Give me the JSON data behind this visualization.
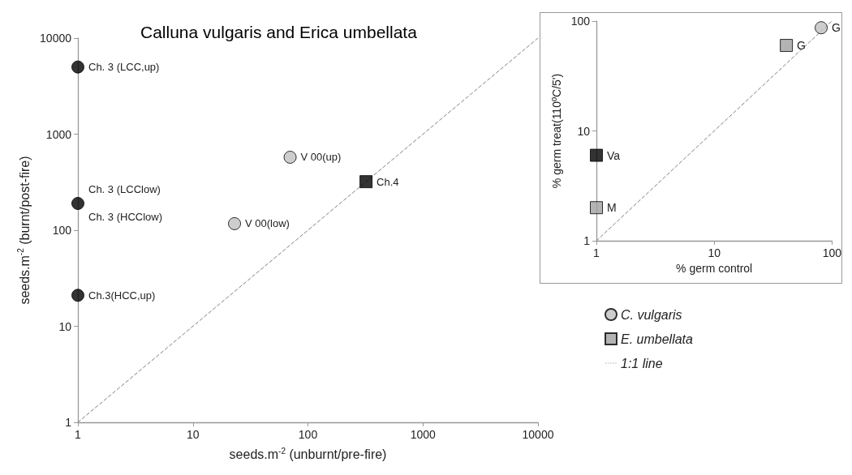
{
  "chart_data": [
    {
      "type": "scatter",
      "title": "Calluna vulgaris and Erica umbellata",
      "xlabel": "seeds.m$^{-2}$ (unburnt/pre-fire)",
      "ylabel": "seeds.m$^{-2}$ (burnt/post-fire)",
      "log": "xy",
      "xlim": [
        1,
        10000
      ],
      "ylim": [
        1,
        10000
      ],
      "xticks": [
        1,
        10,
        100,
        1000,
        10000
      ],
      "yticks": [
        1,
        10,
        100,
        1000,
        10000
      ],
      "grid": false,
      "series": [
        {
          "marker": "circle",
          "color": "#c0c0c0",
          "x": [
            1,
            1,
            1,
            70,
            23
          ],
          "values": [
            5000,
            190,
            21,
            575,
            117
          ],
          "colors": [
            "#000000",
            "#000000",
            "#000000",
            "#c0c0c0",
            "#c0c0c0"
          ]
        },
        {
          "marker": "square",
          "color": "#000000",
          "x": [
            320
          ],
          "values": [
            320
          ],
          "colors": [
            "#000000"
          ]
        },
        {
          "type": "line",
          "color": "#808080",
          "line_style": "dashed",
          "marker": "none",
          "x": [
            1,
            10000
          ],
          "values": [
            1,
            10000
          ]
        }
      ],
      "annotations": [
        {
          "text": "Ch. 3 (LCC,up)",
          "x": 1,
          "y": 5000
        },
        {
          "text": "Ch. 3 (LCClow)",
          "x": 1,
          "y": 190
        },
        {
          "text": "Ch. 3 (HCClow)",
          "x": 1,
          "y": 190
        },
        {
          "text": "Ch.3(HCC,up)",
          "x": 1,
          "y": 21
        },
        {
          "text": "V 00(up)",
          "x": 70,
          "y": 575
        },
        {
          "text": "V 00(low)",
          "x": 23,
          "y": 117
        },
        {
          "text": "Ch.4",
          "x": 320,
          "y": 320
        }
      ]
    },
    {
      "type": "scatter",
      "xlabel": "% germ control",
      "ylabel": "% germ treat(110ºC/5')",
      "log": "xy",
      "xlim": [
        1,
        100
      ],
      "ylim": [
        1,
        100
      ],
      "xticks": [
        1,
        10,
        100
      ],
      "yticks": [
        1,
        10,
        100
      ],
      "grid": false,
      "legend": "bottom",
      "series": [
        {
          "name": "C. vulgaris",
          "marker": "circle",
          "color": "#c0c0c0",
          "x": [
            81
          ],
          "values": [
            87
          ],
          "colors": [
            "#c0c0c0"
          ]
        },
        {
          "name": "E. umbellata",
          "marker": "square",
          "color": "#a0a0a0",
          "x": [
            41,
            1,
            1
          ],
          "values": [
            60,
            6,
            2
          ],
          "colors": [
            "#a0a0a0",
            "#000000",
            "#a0a0a0"
          ]
        },
        {
          "name": "1:1 line",
          "type": "line",
          "color": "#808080",
          "line_style": "dashed",
          "marker": "none",
          "x": [
            1,
            100
          ],
          "values": [
            1,
            100
          ]
        }
      ],
      "annotations": [
        {
          "text": "G",
          "x": 81,
          "y": 87
        },
        {
          "text": "G",
          "x": 41,
          "y": 60
        },
        {
          "text": "Va",
          "x": 1,
          "y": 6
        },
        {
          "text": "M",
          "x": 1,
          "y": 2
        }
      ]
    }
  ]
}
